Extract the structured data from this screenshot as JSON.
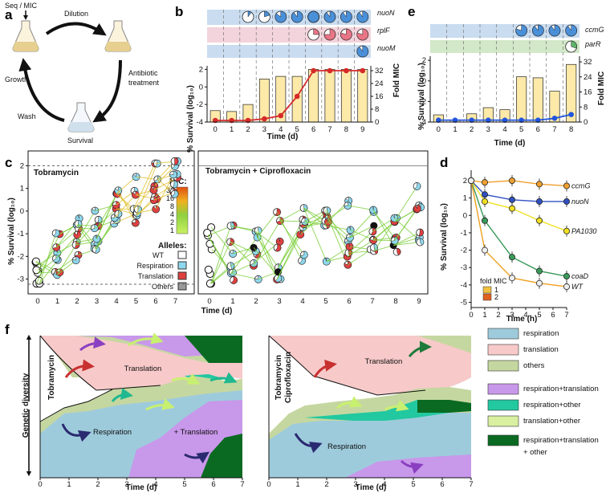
{
  "panels": {
    "a": "a",
    "b": "b",
    "c": "c",
    "d": "d",
    "e": "e",
    "f": "f"
  },
  "panel_a": {
    "seq_mic": "Seq / MIC",
    "dilution": "Dilution",
    "antibiotic_treatment": [
      "Antibiotic",
      "treatment"
    ],
    "growth": "Growth",
    "wash": "Wash",
    "survival": "Survival"
  },
  "panel_b": {
    "ylabel": "% Survival (log₁₀)",
    "y2label": "Fold MIC",
    "xlabel": "Time (d)",
    "genes": [
      "nuoN",
      "rplF",
      "nuoM"
    ],
    "colors": {
      "respiration": "#4a90d9",
      "translation": "#e87585",
      "band_resp": "#c9dcf0",
      "band_trans": "#f3d3dc"
    },
    "chart_data": {
      "type": "bar+line",
      "categories": [
        "0",
        "1",
        "2",
        "3",
        "4",
        "5",
        "6",
        "7",
        "8",
        "9"
      ],
      "survival_log10": [
        -2.7,
        -2.8,
        -2.0,
        0.9,
        1.2,
        1.2,
        2.0,
        2.0,
        2.0,
        2.0
      ],
      "fold_mic": [
        1,
        1,
        1,
        2,
        4,
        16,
        32,
        32,
        32,
        32
      ],
      "yticks": [
        -4,
        -2,
        0,
        2
      ],
      "y2ticks": [
        0,
        8,
        16,
        24,
        32
      ],
      "ylim": [
        -4,
        2.4
      ],
      "y2lim": [
        0,
        35
      ]
    }
  },
  "panel_e": {
    "ylabel": "% Survival (log₁₀)",
    "y2label": "Fold MIC",
    "xlabel": "Time (d)",
    "genes": [
      "ccmG",
      "parR"
    ],
    "colors": {
      "respiration": "#4a90d9",
      "other": "#5fb36b",
      "band_resp": "#c9dcf0",
      "band_other": "#d2e8c8"
    },
    "chart_data": {
      "type": "bar+line",
      "categories": [
        "0",
        "1",
        "2",
        "3",
        "4",
        "5",
        "6",
        "7",
        "8"
      ],
      "survival_log10": [
        -3.3,
        -3.8,
        -3.2,
        -2.6,
        -2.8,
        0.4,
        0.3,
        -1.0,
        1.6
      ],
      "fold_mic": [
        1,
        1,
        1,
        1,
        1,
        1,
        1,
        2,
        4
      ],
      "yticks": [
        -4,
        -2,
        0,
        2
      ],
      "y2ticks": [
        0,
        8,
        16,
        24,
        32
      ],
      "ylim": [
        -4,
        2.4
      ],
      "y2lim": [
        0,
        35
      ]
    }
  },
  "panel_c": {
    "ylabel": "% Survival (log₁₀)",
    "xlabel": "Time (d)",
    "left_title": "Tobramycin",
    "right_title": "Tobramycin + Ciprofloxacin",
    "mic_label": "MIC:",
    "mic_ticks": [
      "32",
      "16",
      "8",
      "4",
      "2",
      "1"
    ],
    "alleles_title": "Alleles:",
    "alleles": [
      "WT",
      "Respiration",
      "Translation",
      "Others"
    ],
    "left_xticks": [
      "0",
      "1",
      "2",
      "3",
      "4",
      "5",
      "6",
      "7"
    ],
    "right_xticks": [
      "0",
      "1",
      "2",
      "3",
      "4",
      "5",
      "6",
      "7",
      "8",
      "9"
    ],
    "yticks": [
      "-3",
      "-2",
      "-1",
      "0",
      "1",
      "2"
    ]
  },
  "panel_d": {
    "ylabel": "% Survival (log₁₀)",
    "xlabel": "Time (h)",
    "legend_title": "fold MIC",
    "legend": [
      "1",
      "2"
    ],
    "chart_data": {
      "type": "line",
      "x": [
        0,
        1,
        3,
        5,
        7
      ],
      "series": [
        {
          "name": "ccmG",
          "values": [
            2.0,
            1.9,
            2.0,
            1.8,
            1.7
          ],
          "color": "#f0a030"
        },
        {
          "name": "nuoN",
          "values": [
            2.0,
            1.2,
            0.9,
            0.8,
            0.8
          ],
          "color": "#3050c0"
        },
        {
          "name": "PA1030",
          "values": [
            2.0,
            0.8,
            0.4,
            -0.3,
            -0.9
          ],
          "color": "#f0e020"
        },
        {
          "name": "coaD",
          "values": [
            2.0,
            -0.3,
            -2.4,
            -3.2,
            -3.5
          ],
          "color": "#3a9a5a"
        },
        {
          "name": "WT",
          "values": [
            2.0,
            -2.0,
            -3.6,
            -3.9,
            -4.1
          ],
          "color": "#eeeeee"
        }
      ],
      "xticks": [
        0,
        1,
        2,
        3,
        4,
        5,
        6,
        7
      ],
      "yticks": [
        -5,
        -4,
        -3,
        -2,
        -1,
        0,
        1,
        2
      ],
      "ylim": [
        -5.3,
        2.6
      ]
    }
  },
  "panel_f": {
    "yaxis_label": "Genetic diversity",
    "xlabel": "Time (d)",
    "xticks": [
      "0",
      "1",
      "2",
      "3",
      "4",
      "5",
      "6",
      "7"
    ],
    "left_drug": "Tobramycin",
    "right_drug": [
      "Tobramycin",
      "Ciprofloxacin"
    ],
    "labels": {
      "translation": "Translation",
      "respiration": "Respiration",
      "plus_translation": "+ Translation"
    },
    "legend": [
      {
        "label": "respiration",
        "color": "#9ecbdc"
      },
      {
        "label": "translation",
        "color": "#f7c9c9"
      },
      {
        "label": "others",
        "color": "#c5d7a0"
      },
      {
        "label": "respiration+translation",
        "color": "#c898ea"
      },
      {
        "label": "respiration+other",
        "color": "#22c8a0"
      },
      {
        "label": "translation+other",
        "color": "#d8f0a0"
      },
      {
        "label": "respiration+translation",
        "color": "#0a6a22"
      },
      {
        "label": "+ other",
        "color": ""
      }
    ]
  }
}
